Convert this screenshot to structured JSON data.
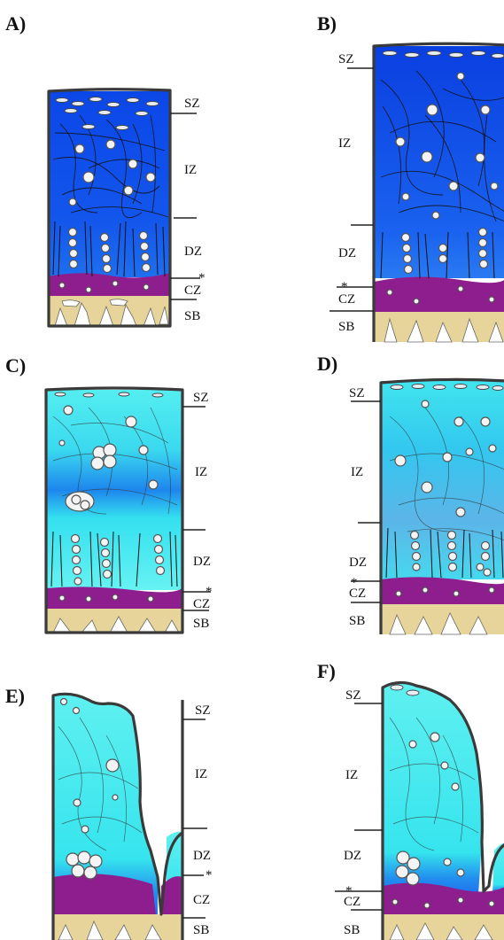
{
  "panels": [
    {
      "id": "A",
      "label": "A)",
      "zones": {
        "SZ": "SZ",
        "IZ": "IZ",
        "DZ": "DZ",
        "CZ": "CZ",
        "SB": "SB"
      },
      "tidemark": "*"
    },
    {
      "id": "B",
      "label": "B)",
      "zones": {
        "SZ": "SZ",
        "IZ": "IZ",
        "DZ": "DZ",
        "CZ": "CZ",
        "SB": "SB"
      },
      "tidemark": "*"
    },
    {
      "id": "C",
      "label": "C)",
      "zones": {
        "SZ": "SZ",
        "IZ": "IZ",
        "DZ": "DZ",
        "CZ": "CZ",
        "SB": "SB"
      },
      "tidemark": "*"
    },
    {
      "id": "D",
      "label": "D)",
      "zones": {
        "SZ": "SZ",
        "IZ": "IZ",
        "DZ": "DZ",
        "CZ": "CZ",
        "SB": "SB"
      },
      "tidemark": "*"
    },
    {
      "id": "E",
      "label": "E)",
      "zones": {
        "SZ": "SZ",
        "IZ": "IZ",
        "DZ": "DZ",
        "CZ": "CZ",
        "SB": "SB"
      },
      "tidemark": "*"
    },
    {
      "id": "F",
      "label": "F)",
      "zones": {
        "SZ": "SZ",
        "IZ": "IZ",
        "DZ": "DZ",
        "CZ": "CZ",
        "SB": "SB"
      },
      "tidemark": "*"
    }
  ],
  "colors": {
    "dark_blue": "#0b47e8",
    "mid_blue": "#1e6ff0",
    "cyan": "#34e6ec",
    "light_cyan": "#6ff3f3",
    "magenta": "#8e1e8e",
    "bone": "#e6d49a",
    "outline": "#3a3a3a"
  }
}
